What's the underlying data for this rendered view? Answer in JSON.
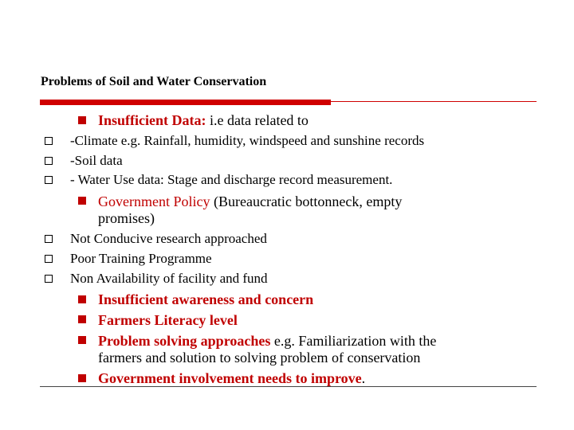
{
  "title": "Problems of Soil and Water Conservation",
  "items": [
    {
      "lead": "Insufficient Data:",
      "rest": " i.e data related to"
    },
    {
      "text": " -Climate e.g. Rainfall, humidity, windspeed and sunshine records"
    },
    {
      "text": " -Soil data"
    },
    {
      "text": " - Water Use data: Stage and discharge record measurement."
    },
    {
      "lead": "Government Policy",
      "rest": " (Bureaucratic bottonneck, empty",
      "cont": "promises)"
    },
    {
      "text": "Not Conducive research approached"
    },
    {
      "text": "Poor Training Programme"
    },
    {
      "text": "Non Availability of facility and fund"
    },
    {
      "lead": "Insufficient awareness and concern"
    },
    {
      "lead": "Farmers Literacy level"
    },
    {
      "lead": "Problem solving approaches",
      "rest": " e.g. Familiarization with the",
      "cont": "farmers and solution to solving problem of conservation"
    },
    {
      "lead": "Government involvement needs to improve",
      "rest": "."
    }
  ]
}
